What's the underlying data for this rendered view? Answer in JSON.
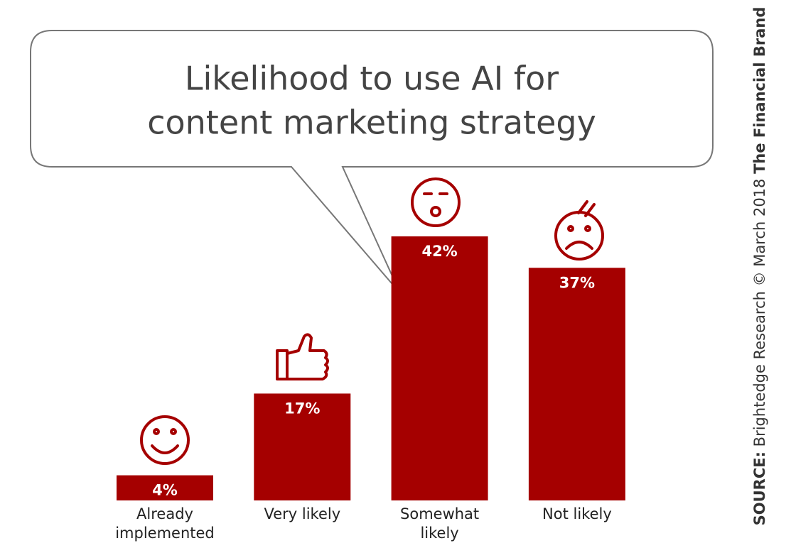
{
  "chart_data": {
    "type": "bar",
    "title": [
      "Likelihood to use AI for",
      "content marketing strategy"
    ],
    "categories": [
      "Already implemented",
      "Very likely",
      "Somewhat likely",
      "Not likely"
    ],
    "values": [
      4,
      17,
      42,
      37
    ],
    "value_labels": [
      "4%",
      "17%",
      "42%",
      "37%"
    ],
    "color": "#a50000",
    "ylim": [
      0,
      42
    ],
    "source": {
      "label": "SOURCE:",
      "text": "Brightedge Research © March 2018",
      "brand": "The Financial Brand"
    }
  }
}
